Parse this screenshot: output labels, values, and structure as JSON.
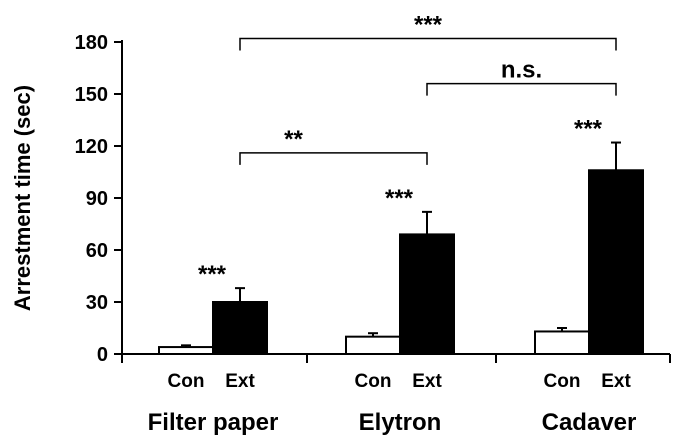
{
  "chart_data": {
    "type": "bar",
    "ylabel": "Arrestment time (sec)",
    "ylim": [
      0,
      180
    ],
    "yticks": [
      0,
      30,
      60,
      90,
      120,
      150,
      180
    ],
    "groups": [
      {
        "label": "Filter paper",
        "bars": [
          {
            "label": "Con",
            "value": 4,
            "error": 1,
            "color": "#ffffff"
          },
          {
            "label": "Ext",
            "value": 30,
            "error": 8,
            "color": "#000000"
          }
        ],
        "star": "***"
      },
      {
        "label": "Elytron",
        "bars": [
          {
            "label": "Con",
            "value": 10,
            "error": 2,
            "color": "#ffffff"
          },
          {
            "label": "Ext",
            "value": 69,
            "error": 13,
            "color": "#000000"
          }
        ],
        "star": "***"
      },
      {
        "label": "Cadaver",
        "bars": [
          {
            "label": "Con",
            "value": 13,
            "error": 2,
            "color": "#ffffff"
          },
          {
            "label": "Ext",
            "value": 106,
            "error": 16,
            "color": "#000000"
          }
        ],
        "star": "***"
      }
    ],
    "comparisons": [
      {
        "from_group": 0,
        "to_group": 1,
        "level": 116,
        "label": "**"
      },
      {
        "from_group": 1,
        "to_group": 2,
        "level": 156,
        "label": "n.s."
      },
      {
        "from_group": 0,
        "to_group": 2,
        "level": 182,
        "label": "***"
      }
    ]
  }
}
